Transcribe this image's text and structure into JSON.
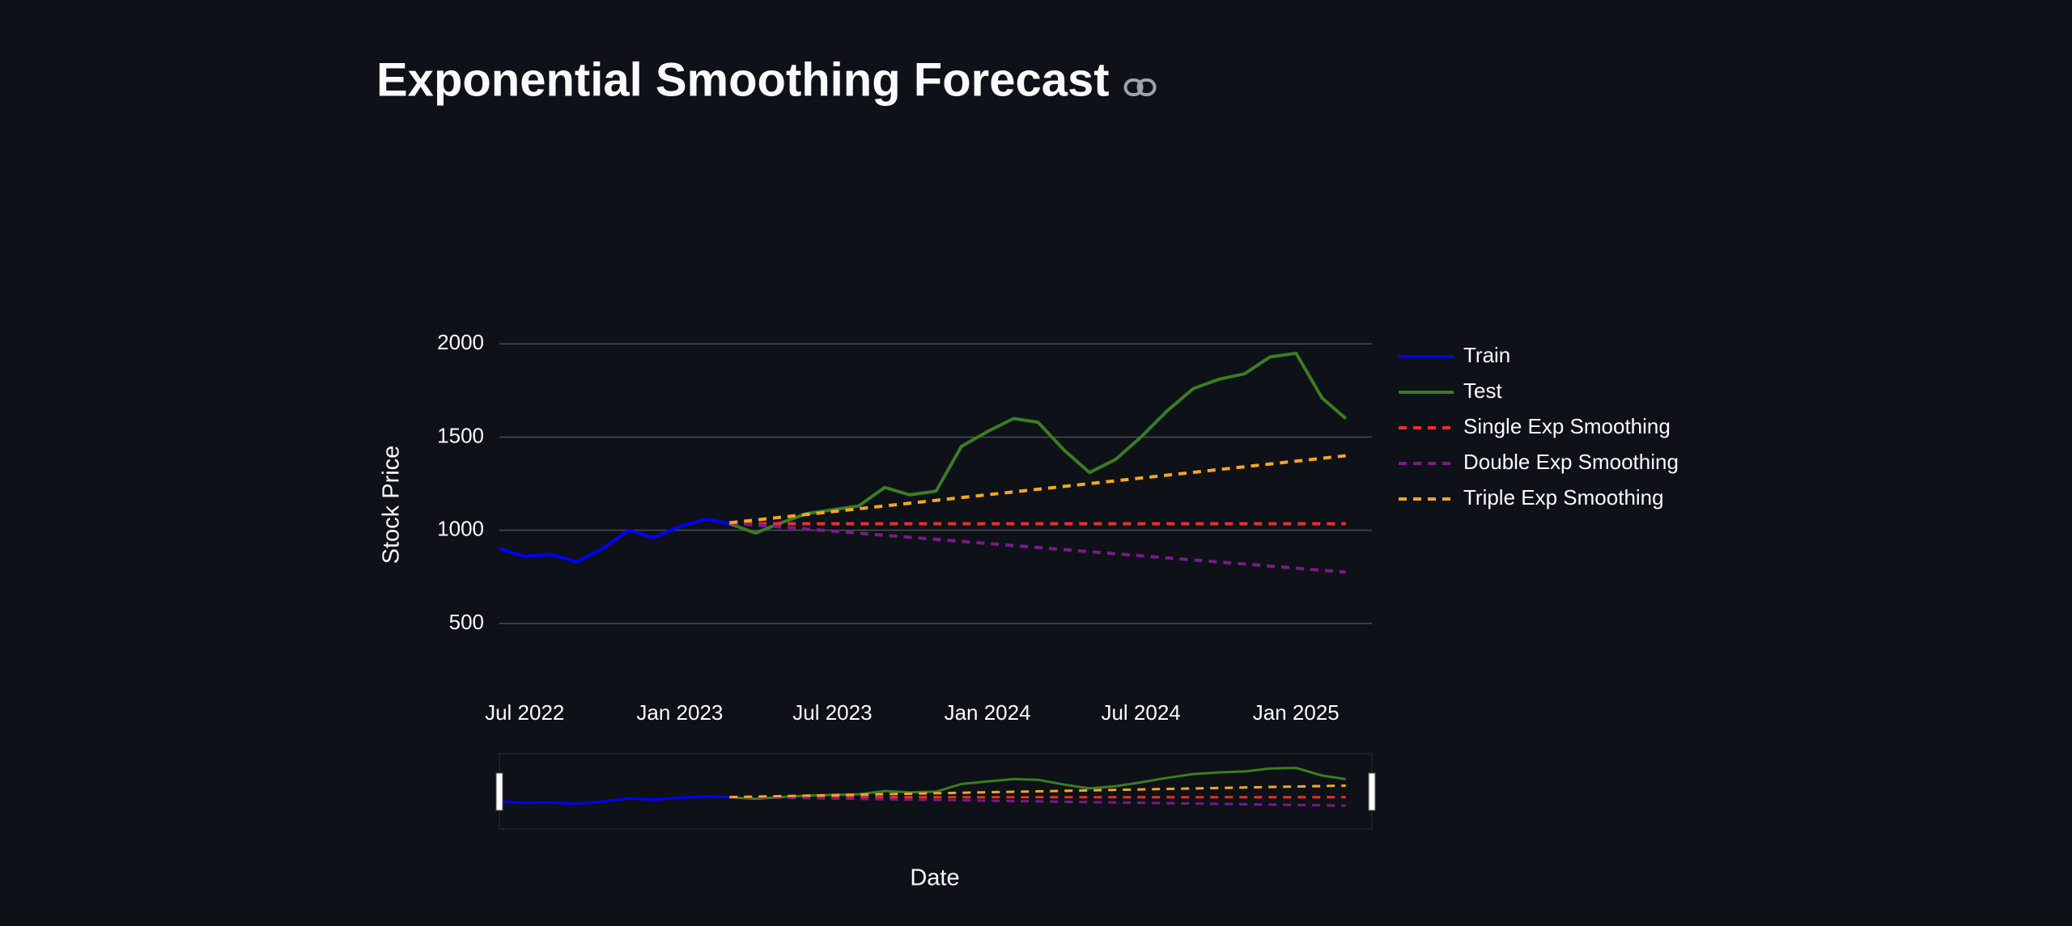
{
  "chart_data": {
    "type": "line",
    "title": "Exponential Smoothing Forecast",
    "x_label": "Date",
    "y_label": "Stock Price",
    "xlim": [
      "2022-06",
      "2025-04"
    ],
    "xticks": [
      {
        "value": "2022-07",
        "label": "Jul 2022"
      },
      {
        "value": "2023-01",
        "label": "Jan 2023"
      },
      {
        "value": "2023-07",
        "label": "Jul 2023"
      },
      {
        "value": "2024-01",
        "label": "Jan 2024"
      },
      {
        "value": "2024-07",
        "label": "Jul 2024"
      },
      {
        "value": "2025-01",
        "label": "Jan 2025"
      }
    ],
    "ylim": [
      200,
      2240
    ],
    "yticks": [
      500,
      1000,
      1500,
      2000
    ],
    "grid": true,
    "legend": "right",
    "range_slider": true,
    "series": [
      {
        "name": "Train",
        "color": "#0000ff",
        "line_style": "solid",
        "x": [
          "2022-06",
          "2022-07",
          "2022-08",
          "2022-09",
          "2022-10",
          "2022-11",
          "2022-12",
          "2023-01",
          "2023-02",
          "2023-03"
        ],
        "values": [
          900,
          860,
          870,
          830,
          900,
          1000,
          960,
          1020,
          1060,
          1035
        ]
      },
      {
        "name": "Test",
        "color": "#3a7d22",
        "line_style": "solid",
        "x": [
          "2023-03",
          "2023-04",
          "2023-05",
          "2023-06",
          "2023-07",
          "2023-08",
          "2023-09",
          "2023-10",
          "2023-11",
          "2023-12",
          "2024-01",
          "2024-02",
          "2024-03",
          "2024-04",
          "2024-05",
          "2024-06",
          "2024-07",
          "2024-08",
          "2024-09",
          "2024-10",
          "2024-11",
          "2024-12",
          "2025-01",
          "2025-02",
          "2025-03"
        ],
        "values": [
          1035,
          985,
          1040,
          1090,
          1110,
          1130,
          1230,
          1190,
          1210,
          1450,
          1530,
          1600,
          1580,
          1430,
          1310,
          1380,
          1500,
          1640,
          1760,
          1810,
          1840,
          1930,
          1950,
          1710,
          1600
        ]
      },
      {
        "name": "Single Exp Smoothing",
        "color": "#e8302e",
        "line_style": "dash",
        "x": [
          "2023-03",
          "2025-03"
        ],
        "values": [
          1035,
          1035
        ]
      },
      {
        "name": "Double Exp Smoothing",
        "color": "#7b1a8a",
        "line_style": "dash",
        "x": [
          "2023-03",
          "2025-03"
        ],
        "values": [
          1040,
          775
        ]
      },
      {
        "name": "Triple Exp Smoothing",
        "color": "#f5a623",
        "line_style": "dash",
        "x": [
          "2023-03",
          "2025-03"
        ],
        "values": [
          1040,
          1400
        ]
      }
    ]
  }
}
